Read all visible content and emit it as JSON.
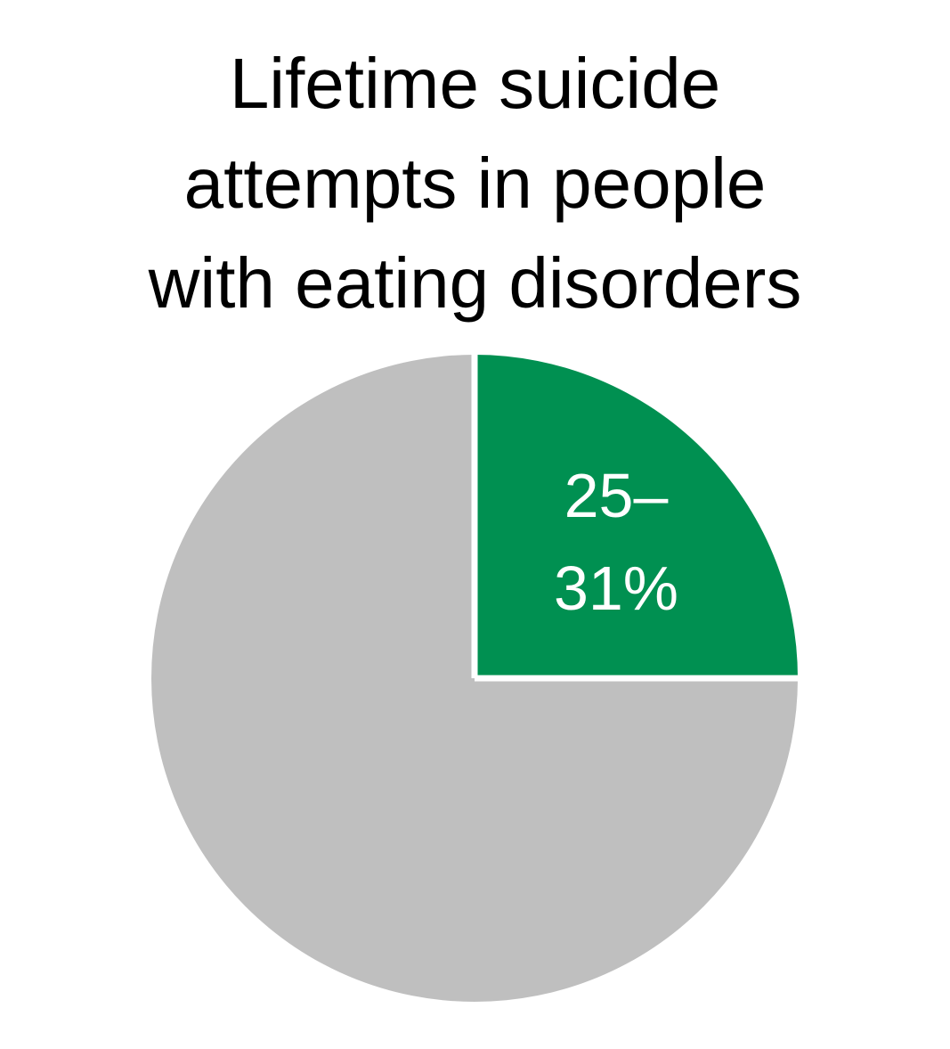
{
  "chart_data": {
    "type": "pie",
    "title_lines": [
      "Lifetime suicide",
      "attempts in people",
      "with eating disorders"
    ],
    "slices": [
      {
        "label_lines": [
          "25–",
          "31%"
        ],
        "value": 25,
        "color": "#009051"
      },
      {
        "value": 75,
        "color": "#bfbfbf"
      }
    ],
    "start_angle": "12 o'clock",
    "direction": "clockwise",
    "separator_color": "#ffffff"
  }
}
